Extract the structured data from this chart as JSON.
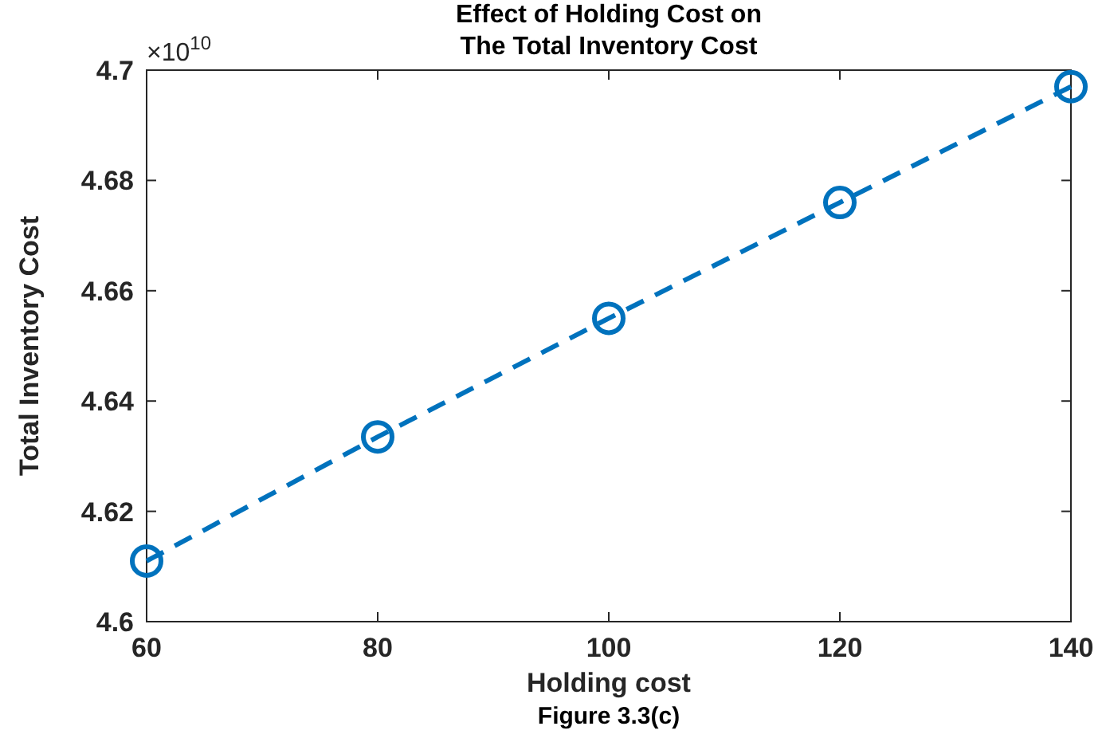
{
  "chart_data": {
    "type": "line",
    "title": "Effect of Holding Cost on\nThe Total Inventory Cost",
    "xlabel": "Holding cost",
    "ylabel": "Total Inventory Cost",
    "annotations": [
      "×10$^{10}$",
      "Figure 3.3(c)"
    ],
    "x": [
      60,
      80,
      100,
      120,
      140
    ],
    "series": [
      {
        "color": "#0072bd",
        "values": [
          4.611,
          4.6335,
          4.655,
          4.676,
          4.697
        ]
      }
    ],
    "xlim": [
      60,
      140
    ],
    "xticks": [
      60,
      80,
      100,
      120,
      140
    ],
    "ylim": [
      4.6,
      4.7
    ],
    "yticks": [
      4.6,
      4.62,
      4.64,
      4.66,
      4.68,
      4.7
    ],
    "grid": false,
    "marker": "circle",
    "line_style": "dashed"
  }
}
